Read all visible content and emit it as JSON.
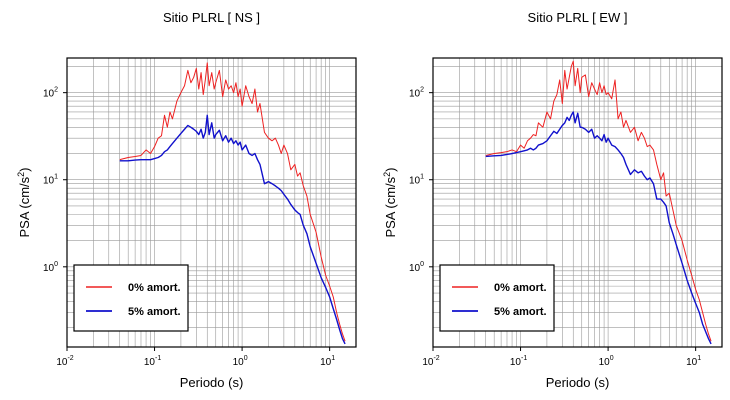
{
  "chart_data": [
    {
      "type": "line",
      "title": "Sitio PLRL [ NS ]",
      "xlabel": "Periodo (s)",
      "ylabel": "PSA (cm/s",
      "ylabel_sup": "2",
      "ylabel_close": ")",
      "xscale": "log",
      "yscale": "log",
      "xlim": [
        0.01,
        20
      ],
      "ylim": [
        0.12,
        250
      ],
      "grid": true,
      "legend": "bottom-left",
      "x_ticks": [
        {
          "value": 0.01,
          "base": "10",
          "exp": "-2"
        },
        {
          "value": 0.1,
          "base": "10",
          "exp": "-1"
        },
        {
          "value": 1,
          "base": "10",
          "exp": "0"
        },
        {
          "value": 10,
          "base": "10",
          "exp": "1"
        }
      ],
      "y_ticks": [
        {
          "value": 1,
          "base": "10",
          "exp": "0"
        },
        {
          "value": 10,
          "base": "10",
          "exp": "1"
        },
        {
          "value": 100,
          "base": "10",
          "exp": "2"
        }
      ],
      "series": [
        {
          "name": "0% amort.",
          "color": "#ee2222",
          "x": [
            0.04,
            0.05,
            0.06,
            0.07,
            0.08,
            0.09,
            0.1,
            0.11,
            0.12,
            0.13,
            0.14,
            0.15,
            0.16,
            0.18,
            0.2,
            0.22,
            0.24,
            0.26,
            0.28,
            0.3,
            0.32,
            0.34,
            0.36,
            0.38,
            0.4,
            0.42,
            0.45,
            0.48,
            0.5,
            0.55,
            0.6,
            0.65,
            0.7,
            0.75,
            0.8,
            0.85,
            0.9,
            0.95,
            1.0,
            1.1,
            1.2,
            1.3,
            1.4,
            1.5,
            1.6,
            1.8,
            2.0,
            2.2,
            2.4,
            2.6,
            2.8,
            3.0,
            3.3,
            3.6,
            4.0,
            4.3,
            4.6,
            5.0,
            5.5,
            6.0,
            7.0,
            8.0,
            9.0,
            10.0,
            11.0,
            12.0,
            13.0,
            14.0,
            15.0
          ],
          "y": [
            17,
            18,
            18.5,
            19,
            22,
            20,
            24,
            30,
            32,
            55,
            40,
            60,
            50,
            80,
            100,
            120,
            180,
            130,
            150,
            190,
            110,
            170,
            95,
            140,
            220,
            120,
            170,
            110,
            130,
            180,
            90,
            140,
            110,
            120,
            100,
            130,
            90,
            110,
            70,
            120,
            90,
            75,
            110,
            60,
            75,
            35,
            30,
            28,
            30,
            25,
            20,
            25,
            20,
            13,
            15,
            11,
            12,
            8.5,
            6.5,
            4.0,
            2.5,
            1.3,
            0.8,
            0.6,
            0.45,
            0.3,
            0.22,
            0.17,
            0.14
          ]
        },
        {
          "name": "5% amort.",
          "color": "#1111cc",
          "x": [
            0.04,
            0.05,
            0.06,
            0.07,
            0.08,
            0.09,
            0.1,
            0.11,
            0.12,
            0.13,
            0.14,
            0.15,
            0.16,
            0.18,
            0.2,
            0.22,
            0.24,
            0.26,
            0.28,
            0.3,
            0.32,
            0.34,
            0.36,
            0.38,
            0.4,
            0.42,
            0.45,
            0.48,
            0.5,
            0.55,
            0.6,
            0.65,
            0.7,
            0.75,
            0.8,
            0.85,
            0.9,
            0.95,
            1.0,
            1.1,
            1.2,
            1.3,
            1.4,
            1.5,
            1.6,
            1.8,
            2.0,
            2.2,
            2.4,
            2.6,
            2.8,
            3.0,
            3.3,
            3.6,
            4.0,
            4.3,
            4.6,
            5.0,
            5.5,
            6.0,
            7.0,
            8.0,
            9.0,
            10.0,
            11.0,
            12.0,
            13.0,
            14.0,
            15.0
          ],
          "y": [
            16.5,
            16.5,
            16.8,
            17,
            17,
            17,
            17.5,
            18,
            19,
            21,
            22,
            24,
            26,
            30,
            34,
            38,
            42,
            40,
            38,
            36,
            33,
            38,
            30,
            35,
            55,
            33,
            45,
            30,
            33,
            37,
            28,
            32,
            27,
            30,
            26,
            28,
            25,
            27,
            22,
            25,
            20,
            19,
            20,
            17,
            15,
            9,
            9.5,
            9,
            8.5,
            8,
            7.5,
            6.8,
            6,
            5.2,
            4.5,
            4.2,
            4.0,
            3.0,
            2.4,
            1.7,
            1.1,
            0.75,
            0.58,
            0.45,
            0.33,
            0.25,
            0.19,
            0.15,
            0.13
          ]
        }
      ]
    },
    {
      "type": "line",
      "title": "Sitio PLRL [ EW ]",
      "xlabel": "Periodo (s)",
      "ylabel": "PSA (cm/s",
      "ylabel_sup": "2",
      "ylabel_close": ")",
      "xscale": "log",
      "yscale": "log",
      "xlim": [
        0.01,
        20
      ],
      "ylim": [
        0.12,
        250
      ],
      "grid": true,
      "legend": "bottom-left",
      "x_ticks": [
        {
          "value": 0.01,
          "base": "10",
          "exp": "-2"
        },
        {
          "value": 0.1,
          "base": "10",
          "exp": "-1"
        },
        {
          "value": 1,
          "base": "10",
          "exp": "0"
        },
        {
          "value": 10,
          "base": "10",
          "exp": "1"
        }
      ],
      "y_ticks": [
        {
          "value": 1,
          "base": "10",
          "exp": "0"
        },
        {
          "value": 10,
          "base": "10",
          "exp": "1"
        },
        {
          "value": 100,
          "base": "10",
          "exp": "2"
        }
      ],
      "series": [
        {
          "name": "0% amort.",
          "color": "#ee2222",
          "x": [
            0.04,
            0.05,
            0.06,
            0.07,
            0.08,
            0.09,
            0.1,
            0.11,
            0.12,
            0.13,
            0.14,
            0.15,
            0.16,
            0.18,
            0.2,
            0.22,
            0.24,
            0.26,
            0.28,
            0.3,
            0.32,
            0.34,
            0.36,
            0.38,
            0.4,
            0.42,
            0.45,
            0.48,
            0.5,
            0.55,
            0.6,
            0.65,
            0.7,
            0.75,
            0.8,
            0.85,
            0.9,
            0.95,
            1.0,
            1.1,
            1.2,
            1.3,
            1.4,
            1.5,
            1.6,
            1.8,
            2.0,
            2.2,
            2.4,
            2.6,
            2.8,
            3.0,
            3.3,
            3.6,
            4.0,
            4.3,
            4.6,
            5.0,
            5.5,
            6.0,
            7.0,
            8.0,
            9.0,
            10.0,
            11.0,
            12.0,
            13.0,
            14.0,
            15.0
          ],
          "y": [
            19,
            20,
            20.5,
            21,
            22,
            21,
            25,
            23,
            28,
            30,
            33,
            32,
            45,
            40,
            60,
            50,
            80,
            95,
            140,
            75,
            180,
            110,
            150,
            200,
            230,
            120,
            190,
            100,
            150,
            160,
            90,
            130,
            110,
            95,
            130,
            100,
            120,
            95,
            100,
            85,
            140,
            50,
            60,
            40,
            48,
            35,
            40,
            28,
            35,
            30,
            24,
            25,
            22,
            15,
            10,
            12,
            6.5,
            7,
            4.5,
            3.0,
            2.0,
            1.2,
            0.8,
            0.55,
            0.42,
            0.3,
            0.22,
            0.17,
            0.14
          ]
        },
        {
          "name": "5% amort.",
          "color": "#1111cc",
          "x": [
            0.04,
            0.05,
            0.06,
            0.07,
            0.08,
            0.09,
            0.1,
            0.11,
            0.12,
            0.13,
            0.14,
            0.15,
            0.16,
            0.18,
            0.2,
            0.22,
            0.24,
            0.26,
            0.28,
            0.3,
            0.32,
            0.34,
            0.36,
            0.38,
            0.4,
            0.42,
            0.45,
            0.48,
            0.5,
            0.55,
            0.6,
            0.65,
            0.7,
            0.75,
            0.8,
            0.85,
            0.9,
            0.95,
            1.0,
            1.1,
            1.2,
            1.3,
            1.4,
            1.5,
            1.6,
            1.8,
            2.0,
            2.2,
            2.4,
            2.6,
            2.8,
            3.0,
            3.3,
            3.6,
            4.0,
            4.3,
            4.6,
            5.0,
            5.5,
            6.0,
            7.0,
            8.0,
            9.0,
            10.0,
            11.0,
            12.0,
            13.0,
            14.0,
            15.0
          ],
          "y": [
            18.5,
            18.8,
            19,
            19.5,
            20,
            20.5,
            21,
            21.5,
            22,
            23,
            22,
            23,
            25,
            26,
            28,
            32,
            36,
            34,
            38,
            42,
            45,
            52,
            48,
            55,
            60,
            45,
            58,
            40,
            40,
            38,
            35,
            38,
            30,
            32,
            30,
            28,
            33,
            27,
            30,
            25,
            24,
            22,
            20,
            18,
            15,
            11.5,
            13,
            12,
            12.5,
            11,
            10,
            10.5,
            9,
            6,
            6,
            5.5,
            5,
            3.2,
            2.4,
            1.8,
            1.1,
            0.7,
            0.5,
            0.38,
            0.3,
            0.22,
            0.18,
            0.15,
            0.13
          ]
        }
      ]
    }
  ]
}
